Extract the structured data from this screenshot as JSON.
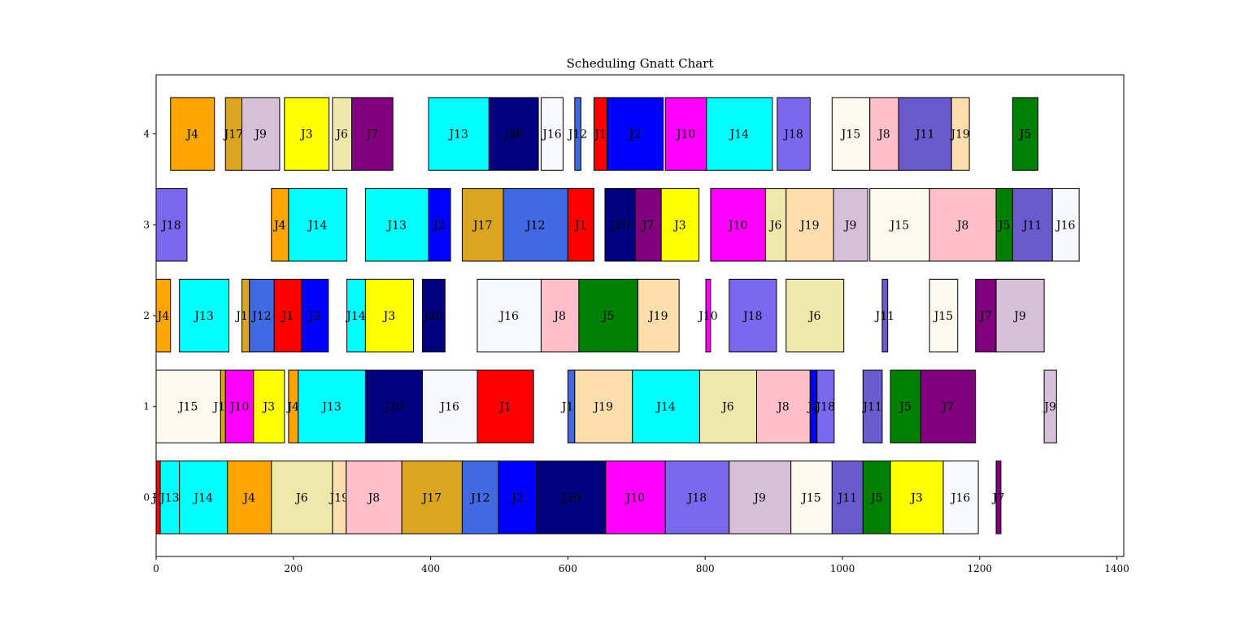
{
  "chart_data": {
    "type": "gantt",
    "title": "Scheduling Gnatt Chart",
    "xlabel": "",
    "ylabel": "",
    "xlim": [
      0,
      1410
    ],
    "ylim": [
      -0.65,
      4.65
    ],
    "grid": false,
    "x_ticks": [
      0,
      200,
      400,
      600,
      800,
      1000,
      1200,
      1400
    ],
    "y_ticks": [
      0,
      1,
      2,
      3,
      4
    ],
    "bar_height": 0.8,
    "colors": {
      "J1": "#ff0000",
      "J2": "#0000ff",
      "J3": "#ffff00",
      "J4": "#ffa500",
      "J5": "#008000",
      "J6": "#eee8aa",
      "J7": "#800080",
      "J8": "#ffc0cb",
      "J9": "#d8bfd8",
      "J10": "#ff00ff",
      "J11": "#6a5acd",
      "J12": "#4169e1",
      "J13": "#00ffff",
      "J14": "#00ffff",
      "J15": "#fffaf0",
      "J16": "#f8f8ff",
      "J17": "#daa520",
      "J18": "#7b68ee",
      "J19": "#ffdead",
      "J20": "#000080"
    },
    "machines": [
      {
        "machine": 0,
        "tasks": [
          {
            "job": "J1",
            "start": 0,
            "end": 6
          },
          {
            "job": "J13",
            "start": 6,
            "end": 34
          },
          {
            "job": "J14",
            "start": 34,
            "end": 104
          },
          {
            "job": "J4",
            "start": 104,
            "end": 168
          },
          {
            "job": "J6",
            "start": 168,
            "end": 257
          },
          {
            "job": "J19",
            "start": 257,
            "end": 277
          },
          {
            "job": "J8",
            "start": 277,
            "end": 358
          },
          {
            "job": "J17",
            "start": 358,
            "end": 446
          },
          {
            "job": "J12",
            "start": 446,
            "end": 499
          },
          {
            "job": "J2",
            "start": 499,
            "end": 555
          },
          {
            "job": "J20",
            "start": 555,
            "end": 655
          },
          {
            "job": "J10",
            "start": 655,
            "end": 742
          },
          {
            "job": "J18",
            "start": 742,
            "end": 835
          },
          {
            "job": "J9",
            "start": 835,
            "end": 925
          },
          {
            "job": "J15",
            "start": 925,
            "end": 985
          },
          {
            "job": "J11",
            "start": 985,
            "end": 1030
          },
          {
            "job": "J5",
            "start": 1030,
            "end": 1070
          },
          {
            "job": "J3",
            "start": 1070,
            "end": 1147
          },
          {
            "job": "J16",
            "start": 1147,
            "end": 1198
          },
          {
            "job": "J7",
            "start": 1224,
            "end": 1231
          }
        ]
      },
      {
        "machine": 1,
        "tasks": [
          {
            "job": "J15",
            "start": 0,
            "end": 94
          },
          {
            "job": "J17",
            "start": 94,
            "end": 101
          },
          {
            "job": "J10",
            "start": 101,
            "end": 142
          },
          {
            "job": "J3",
            "start": 142,
            "end": 187
          },
          {
            "job": "J4",
            "start": 193,
            "end": 207
          },
          {
            "job": "J13",
            "start": 207,
            "end": 305
          },
          {
            "job": "J20",
            "start": 305,
            "end": 388
          },
          {
            "job": "J16",
            "start": 388,
            "end": 468
          },
          {
            "job": "J1",
            "start": 468,
            "end": 550
          },
          {
            "job": "J12",
            "start": 600,
            "end": 610
          },
          {
            "job": "J19",
            "start": 610,
            "end": 694
          },
          {
            "job": "J14",
            "start": 694,
            "end": 792
          },
          {
            "job": "J6",
            "start": 792,
            "end": 875
          },
          {
            "job": "J8",
            "start": 875,
            "end": 953
          },
          {
            "job": "J2",
            "start": 953,
            "end": 963
          },
          {
            "job": "J18",
            "start": 963,
            "end": 988
          },
          {
            "job": "J11",
            "start": 1030,
            "end": 1058
          },
          {
            "job": "J5",
            "start": 1070,
            "end": 1114
          },
          {
            "job": "J7",
            "start": 1114,
            "end": 1194
          },
          {
            "job": "J9",
            "start": 1294,
            "end": 1312
          }
        ]
      },
      {
        "machine": 2,
        "tasks": [
          {
            "job": "J4",
            "start": 0,
            "end": 21
          },
          {
            "job": "J13",
            "start": 34,
            "end": 106
          },
          {
            "job": "J17",
            "start": 125,
            "end": 136
          },
          {
            "job": "J12",
            "start": 136,
            "end": 172
          },
          {
            "job": "J1",
            "start": 172,
            "end": 212
          },
          {
            "job": "J2",
            "start": 212,
            "end": 251
          },
          {
            "job": "J14",
            "start": 278,
            "end": 305
          },
          {
            "job": "J3",
            "start": 305,
            "end": 375
          },
          {
            "job": "J20",
            "start": 388,
            "end": 421
          },
          {
            "job": "J16",
            "start": 468,
            "end": 561
          },
          {
            "job": "J8",
            "start": 561,
            "end": 616
          },
          {
            "job": "J5",
            "start": 616,
            "end": 702
          },
          {
            "job": "J19",
            "start": 702,
            "end": 762
          },
          {
            "job": "J10",
            "start": 801,
            "end": 808
          },
          {
            "job": "J18",
            "start": 835,
            "end": 904
          },
          {
            "job": "J6",
            "start": 918,
            "end": 1002
          },
          {
            "job": "J11",
            "start": 1058,
            "end": 1066
          },
          {
            "job": "J15",
            "start": 1127,
            "end": 1168
          },
          {
            "job": "J7",
            "start": 1194,
            "end": 1224
          },
          {
            "job": "J9",
            "start": 1224,
            "end": 1294
          }
        ]
      },
      {
        "machine": 3,
        "tasks": [
          {
            "job": "J18",
            "start": 0,
            "end": 45
          },
          {
            "job": "J4",
            "start": 168,
            "end": 193
          },
          {
            "job": "J14",
            "start": 193,
            "end": 278
          },
          {
            "job": "J13",
            "start": 305,
            "end": 397
          },
          {
            "job": "J2",
            "start": 397,
            "end": 429
          },
          {
            "job": "J17",
            "start": 446,
            "end": 506
          },
          {
            "job": "J12",
            "start": 506,
            "end": 600
          },
          {
            "job": "J1",
            "start": 600,
            "end": 638
          },
          {
            "job": "J20",
            "start": 654,
            "end": 698
          },
          {
            "job": "J7",
            "start": 698,
            "end": 736
          },
          {
            "job": "J3",
            "start": 736,
            "end": 791
          },
          {
            "job": "J10",
            "start": 808,
            "end": 888
          },
          {
            "job": "J6",
            "start": 888,
            "end": 918
          },
          {
            "job": "J19",
            "start": 918,
            "end": 987
          },
          {
            "job": "J9",
            "start": 987,
            "end": 1037
          },
          {
            "job": "J15",
            "start": 1040,
            "end": 1127
          },
          {
            "job": "J8",
            "start": 1127,
            "end": 1224
          },
          {
            "job": "J5",
            "start": 1224,
            "end": 1248
          },
          {
            "job": "J11",
            "start": 1248,
            "end": 1306
          },
          {
            "job": "J16",
            "start": 1306,
            "end": 1345
          }
        ]
      },
      {
        "machine": 4,
        "tasks": [
          {
            "job": "J4",
            "start": 21,
            "end": 85
          },
          {
            "job": "J17",
            "start": 101,
            "end": 125
          },
          {
            "job": "J9",
            "start": 125,
            "end": 180
          },
          {
            "job": "J3",
            "start": 187,
            "end": 252
          },
          {
            "job": "J6",
            "start": 257,
            "end": 285
          },
          {
            "job": "J7",
            "start": 285,
            "end": 345
          },
          {
            "job": "J13",
            "start": 397,
            "end": 485
          },
          {
            "job": "J20",
            "start": 485,
            "end": 557
          },
          {
            "job": "J16",
            "start": 561,
            "end": 593
          },
          {
            "job": "J12",
            "start": 610,
            "end": 619
          },
          {
            "job": "J1",
            "start": 638,
            "end": 657
          },
          {
            "job": "J2",
            "start": 657,
            "end": 739
          },
          {
            "job": "J10",
            "start": 742,
            "end": 802
          },
          {
            "job": "J14",
            "start": 802,
            "end": 898
          },
          {
            "job": "J18",
            "start": 905,
            "end": 953
          },
          {
            "job": "J15",
            "start": 985,
            "end": 1040
          },
          {
            "job": "J8",
            "start": 1040,
            "end": 1082
          },
          {
            "job": "J11",
            "start": 1082,
            "end": 1159
          },
          {
            "job": "J19",
            "start": 1159,
            "end": 1185
          },
          {
            "job": "J5",
            "start": 1248,
            "end": 1285
          }
        ]
      }
    ]
  }
}
